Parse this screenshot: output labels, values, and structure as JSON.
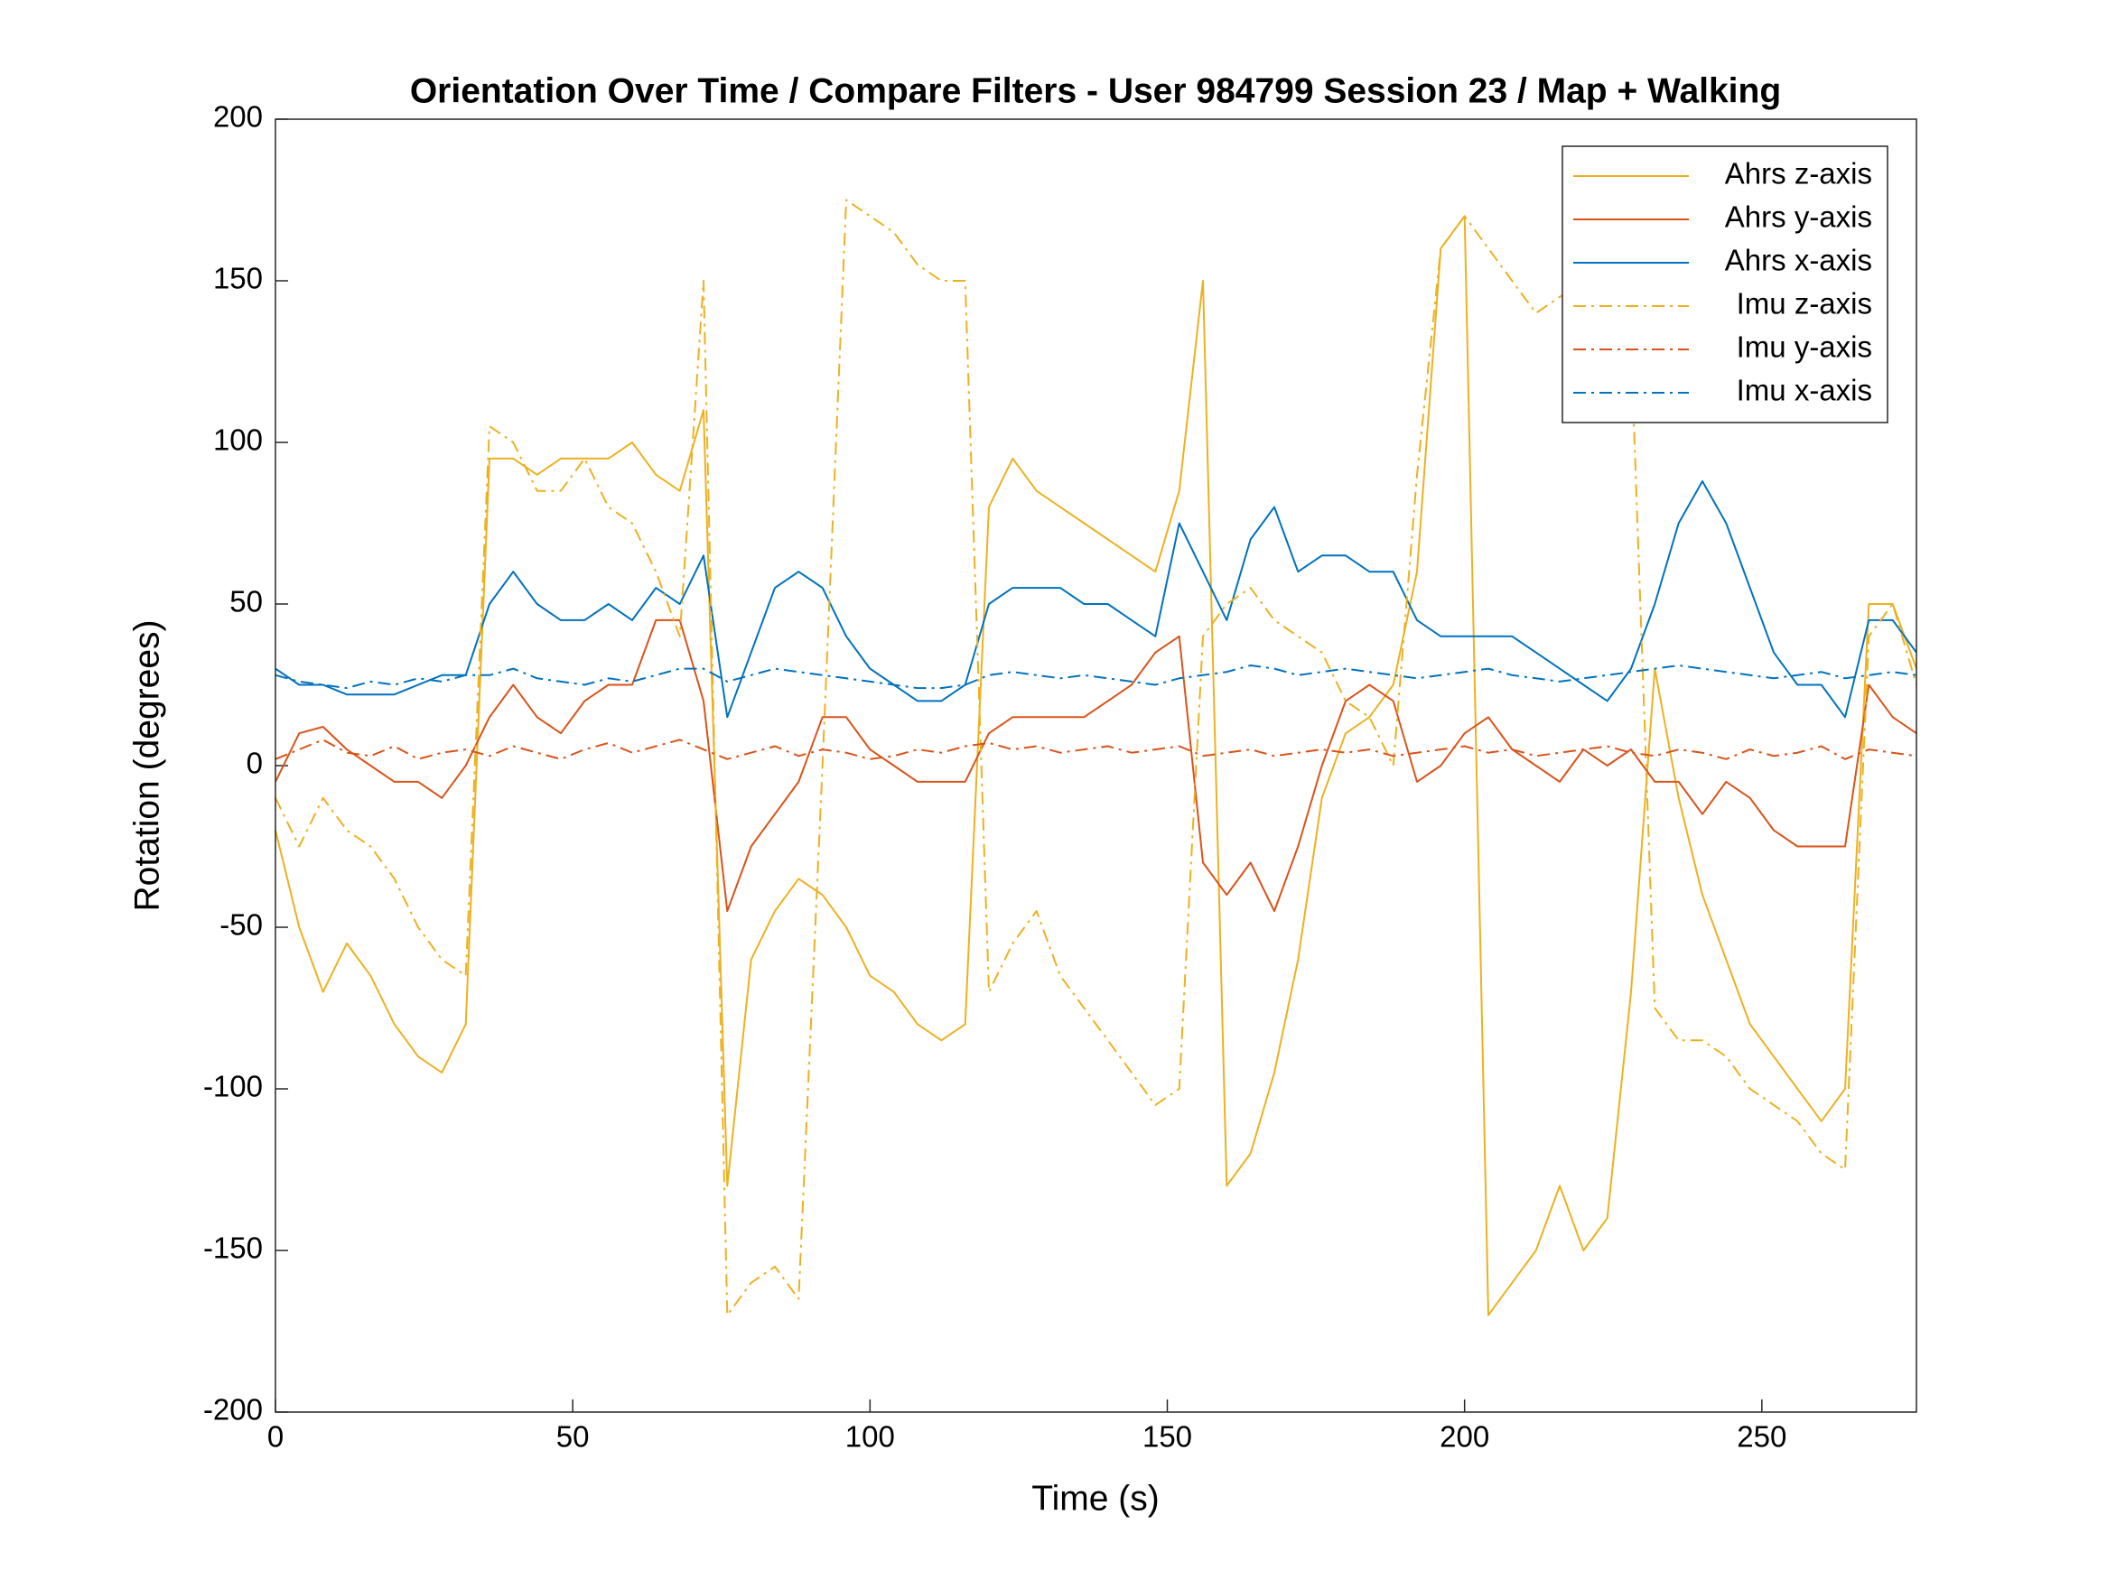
{
  "chart_data": {
    "type": "line",
    "title": "Orientation Over Time / Compare Filters - User 984799 Session 23 / Map + Walking",
    "x_label": "Time (s)",
    "y_label": "Rotation (degrees)",
    "xlim": [
      0,
      276
    ],
    "ylim": [
      -200,
      200
    ],
    "xticks": [
      0,
      50,
      100,
      150,
      200,
      250
    ],
    "yticks": [
      -200,
      -150,
      -100,
      -50,
      0,
      50,
      100,
      150,
      200
    ],
    "legend": "northeast",
    "grid": false,
    "x": [
      0,
      4,
      8,
      12,
      16,
      20,
      24,
      28,
      32,
      36,
      40,
      44,
      48,
      52,
      56,
      60,
      64,
      68,
      72,
      76,
      80,
      84,
      88,
      92,
      96,
      100,
      104,
      108,
      112,
      116,
      120,
      124,
      128,
      132,
      136,
      140,
      144,
      148,
      152,
      156,
      160,
      164,
      168,
      172,
      176,
      180,
      184,
      188,
      192,
      196,
      200,
      204,
      208,
      212,
      216,
      220,
      224,
      228,
      232,
      236,
      240,
      244,
      248,
      252,
      256,
      260,
      264,
      268,
      272,
      276
    ],
    "series": [
      {
        "name": "Ahrs z-axis",
        "color": "#EDB120",
        "style": "solid",
        "values": [
          -20,
          -50,
          -70,
          -55,
          -65,
          -80,
          -90,
          -95,
          -80,
          95,
          95,
          90,
          95,
          95,
          95,
          100,
          90,
          85,
          110,
          -130,
          -60,
          -45,
          -35,
          -40,
          -50,
          -65,
          -70,
          -80,
          -85,
          -80,
          80,
          95,
          85,
          80,
          75,
          70,
          65,
          60,
          85,
          150,
          -130,
          -120,
          -95,
          -60,
          -10,
          10,
          15,
          25,
          60,
          160,
          170,
          -170,
          -160,
          -150,
          -130,
          -150,
          -140,
          -70,
          30,
          -10,
          -40,
          -60,
          -80,
          -90,
          -100,
          -110,
          -100,
          50,
          50,
          30
        ]
      },
      {
        "name": "Ahrs y-axis",
        "color": "#D95319",
        "style": "solid",
        "values": [
          -5,
          10,
          12,
          5,
          0,
          -5,
          -5,
          -10,
          0,
          15,
          25,
          15,
          10,
          20,
          25,
          25,
          45,
          45,
          20,
          -45,
          -25,
          -15,
          -5,
          15,
          15,
          5,
          0,
          -5,
          -5,
          -5,
          10,
          15,
          15,
          15,
          15,
          20,
          25,
          35,
          40,
          -30,
          -40,
          -30,
          -45,
          -25,
          0,
          20,
          25,
          20,
          -5,
          0,
          10,
          15,
          5,
          0,
          -5,
          5,
          0,
          5,
          -5,
          -5,
          -15,
          -5,
          -10,
          -20,
          -25,
          -25,
          -25,
          25,
          15,
          10
        ]
      },
      {
        "name": "Ahrs x-axis",
        "color": "#0072BD",
        "style": "solid",
        "values": [
          30,
          25,
          25,
          22,
          22,
          22,
          25,
          28,
          28,
          50,
          60,
          50,
          45,
          45,
          50,
          45,
          55,
          50,
          65,
          15,
          35,
          55,
          60,
          55,
          40,
          30,
          25,
          20,
          20,
          25,
          50,
          55,
          55,
          55,
          50,
          50,
          45,
          40,
          75,
          60,
          45,
          70,
          80,
          60,
          65,
          65,
          60,
          60,
          45,
          40,
          40,
          40,
          40,
          35,
          30,
          25,
          20,
          30,
          50,
          75,
          88,
          75,
          55,
          35,
          25,
          25,
          15,
          45,
          45,
          35
        ]
      },
      {
        "name": "Imu z-axis",
        "color": "#EDB120",
        "style": "dashdot",
        "values": [
          -10,
          -25,
          -10,
          -20,
          -25,
          -35,
          -50,
          -60,
          -65,
          105,
          100,
          85,
          85,
          95,
          80,
          75,
          60,
          40,
          150,
          -170,
          -160,
          -155,
          -165,
          0,
          175,
          170,
          165,
          155,
          150,
          150,
          -70,
          -55,
          -45,
          -65,
          -75,
          -85,
          -95,
          -105,
          -100,
          40,
          50,
          55,
          45,
          40,
          35,
          20,
          15,
          0,
          90,
          160,
          170,
          160,
          150,
          140,
          145,
          150,
          150,
          130,
          -75,
          -85,
          -85,
          -90,
          -100,
          -105,
          -110,
          -120,
          -125,
          40,
          50,
          25
        ]
      },
      {
        "name": "Imu y-axis",
        "color": "#D95319",
        "style": "dashdot",
        "values": [
          2,
          5,
          8,
          4,
          3,
          6,
          2,
          4,
          5,
          3,
          6,
          4,
          2,
          5,
          7,
          4,
          6,
          8,
          5,
          2,
          4,
          6,
          3,
          5,
          4,
          2,
          3,
          5,
          4,
          6,
          7,
          5,
          6,
          4,
          5,
          6,
          4,
          5,
          6,
          3,
          4,
          5,
          3,
          4,
          5,
          4,
          5,
          3,
          4,
          5,
          6,
          4,
          5,
          3,
          4,
          5,
          6,
          4,
          3,
          5,
          4,
          2,
          5,
          3,
          4,
          6,
          2,
          5,
          4,
          3
        ]
      },
      {
        "name": "Imu x-axis",
        "color": "#0072BD",
        "style": "dashdot",
        "values": [
          28,
          26,
          25,
          24,
          26,
          25,
          27,
          26,
          28,
          28,
          30,
          27,
          26,
          25,
          27,
          26,
          28,
          30,
          30,
          26,
          28,
          30,
          29,
          28,
          27,
          26,
          25,
          24,
          24,
          25,
          28,
          29,
          28,
          27,
          28,
          27,
          26,
          25,
          27,
          28,
          29,
          31,
          30,
          28,
          29,
          30,
          29,
          28,
          27,
          28,
          29,
          30,
          28,
          27,
          26,
          27,
          28,
          29,
          30,
          31,
          30,
          29,
          28,
          27,
          28,
          29,
          27,
          28,
          29,
          28
        ]
      }
    ]
  }
}
